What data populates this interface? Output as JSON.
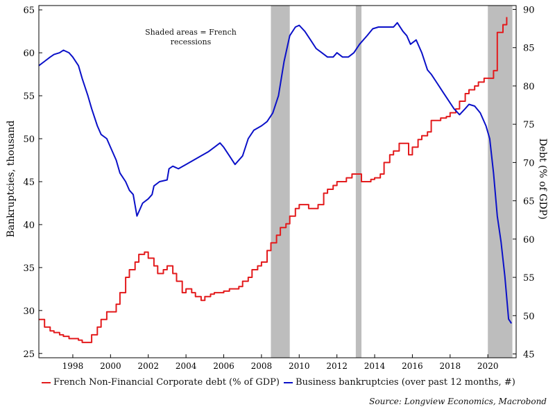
{
  "chart_data": {
    "type": "line",
    "annotation": "Shaded areas = French recessions",
    "source": "Source: Longview Economics, Macrobond",
    "x_ticks": [
      1998,
      2000,
      2002,
      2004,
      2006,
      2008,
      2010,
      2012,
      2014,
      2016,
      2018,
      2020
    ],
    "xlim": [
      1996.2,
      2021.5
    ],
    "left_axis": {
      "label": "Bankruptcies, thousand",
      "ylim": [
        24.5,
        65.5
      ],
      "ticks": [
        25,
        30,
        35,
        40,
        45,
        50,
        55,
        60,
        65
      ]
    },
    "right_axis": {
      "label": "Debt (% of GDP)",
      "ylim": [
        44.5,
        90.5
      ],
      "ticks": [
        45,
        50,
        55,
        60,
        65,
        70,
        75,
        80,
        85,
        90
      ]
    },
    "recessions": [
      [
        2008.5,
        2009.5
      ],
      [
        2013.0,
        2013.3
      ],
      [
        2020.0,
        2021.3
      ]
    ],
    "series": [
      {
        "name": "French Non-Financial Corporate debt (% of GDP)",
        "axis": "right",
        "color": "#e31a1c",
        "step": true,
        "x": [
          1996.2,
          1996.5,
          1996.8,
          1997.0,
          1997.3,
          1997.5,
          1997.8,
          1998.0,
          1998.3,
          1998.5,
          1998.8,
          1999.0,
          1999.3,
          1999.5,
          1999.8,
          2000.0,
          2000.3,
          2000.5,
          2000.8,
          2001.0,
          2001.3,
          2001.5,
          2001.8,
          2002.0,
          2002.3,
          2002.5,
          2002.8,
          2003.0,
          2003.3,
          2003.5,
          2003.8,
          2004.0,
          2004.3,
          2004.5,
          2004.8,
          2005.0,
          2005.3,
          2005.5,
          2005.8,
          2006.0,
          2006.3,
          2006.5,
          2006.8,
          2007.0,
          2007.3,
          2007.5,
          2007.8,
          2008.0,
          2008.3,
          2008.5,
          2008.8,
          2009.0,
          2009.3,
          2009.5,
          2009.8,
          2010.0,
          2010.3,
          2010.5,
          2010.8,
          2011.0,
          2011.3,
          2011.5,
          2011.8,
          2012.0,
          2012.3,
          2012.5,
          2012.8,
          2013.0,
          2013.3,
          2013.5,
          2013.8,
          2014.0,
          2014.3,
          2014.5,
          2014.8,
          2015.0,
          2015.3,
          2015.5,
          2015.8,
          2016.0,
          2016.3,
          2016.5,
          2016.8,
          2017.0,
          2017.3,
          2017.5,
          2017.8,
          2018.0,
          2018.3,
          2018.5,
          2018.8,
          2019.0,
          2019.3,
          2019.5,
          2019.8,
          2020.0,
          2020.3,
          2020.5,
          2020.8,
          2021.0
        ],
        "values": [
          49.5,
          48.5,
          48.0,
          47.8,
          47.5,
          47.3,
          47.0,
          47.0,
          46.8,
          46.5,
          46.5,
          47.5,
          48.5,
          49.5,
          50.5,
          50.5,
          51.5,
          53.0,
          55.0,
          56.0,
          57.0,
          58.0,
          58.3,
          57.5,
          56.5,
          55.5,
          56.0,
          56.5,
          55.5,
          54.5,
          53.0,
          53.5,
          53.0,
          52.5,
          52.0,
          52.5,
          52.8,
          53.0,
          53.0,
          53.2,
          53.5,
          53.5,
          53.8,
          54.5,
          55.0,
          56.0,
          56.5,
          57.0,
          58.5,
          59.5,
          60.5,
          61.5,
          62.0,
          63.0,
          64.0,
          64.5,
          64.5,
          64.0,
          64.0,
          64.5,
          66.0,
          66.5,
          67.0,
          67.5,
          67.5,
          68.0,
          68.5,
          68.5,
          67.5,
          67.5,
          67.8,
          68.0,
          68.5,
          70.0,
          71.0,
          71.5,
          72.5,
          72.5,
          71.0,
          72.0,
          73.0,
          73.5,
          74.0,
          75.5,
          75.5,
          75.8,
          76.0,
          76.5,
          77.0,
          78.0,
          79.0,
          79.5,
          80.0,
          80.5,
          81.0,
          81.0,
          82.0,
          87.0,
          88.0,
          89.0
        ]
      },
      {
        "name": "Business bankruptcies (over past 12 months, #)",
        "axis": "left",
        "color": "#0a10c8",
        "step": false,
        "x": [
          1996.2,
          1996.5,
          1996.8,
          1997.0,
          1997.3,
          1997.5,
          1997.8,
          1998.0,
          1998.3,
          1998.5,
          1998.8,
          1999.0,
          1999.3,
          1999.5,
          1999.8,
          2000.0,
          2000.3,
          2000.5,
          2000.8,
          2001.0,
          2001.2,
          2001.4,
          2001.7,
          2002.0,
          2002.2,
          2002.3,
          2002.6,
          2003.0,
          2003.1,
          2003.3,
          2003.6,
          2004.0,
          2004.4,
          2004.8,
          2005.2,
          2005.5,
          2005.8,
          2006.0,
          2006.3,
          2006.6,
          2007.0,
          2007.3,
          2007.6,
          2008.0,
          2008.3,
          2008.6,
          2008.9,
          2009.2,
          2009.5,
          2009.8,
          2010.0,
          2010.3,
          2010.6,
          2010.9,
          2011.2,
          2011.5,
          2011.8,
          2012.0,
          2012.3,
          2012.6,
          2012.9,
          2013.2,
          2013.6,
          2013.9,
          2014.2,
          2014.5,
          2014.8,
          2015.0,
          2015.2,
          2015.5,
          2015.7,
          2015.9,
          2016.2,
          2016.5,
          2016.8,
          2017.0,
          2017.3,
          2017.6,
          2017.9,
          2018.2,
          2018.5,
          2018.8,
          2019.0,
          2019.3,
          2019.6,
          2019.9,
          2020.1,
          2020.3,
          2020.5,
          2020.7,
          2020.9,
          2021.1,
          2021.25
        ],
        "values": [
          58.5,
          59.0,
          59.5,
          59.8,
          60.0,
          60.3,
          60.0,
          59.5,
          58.5,
          57.0,
          55.0,
          53.5,
          51.5,
          50.5,
          50.0,
          49.0,
          47.5,
          46.0,
          45.0,
          44.0,
          43.5,
          41.0,
          42.5,
          43.0,
          43.5,
          44.5,
          45.0,
          45.2,
          46.5,
          46.8,
          46.5,
          47.0,
          47.5,
          48.0,
          48.5,
          49.0,
          49.5,
          49.0,
          48.0,
          47.0,
          48.0,
          50.0,
          51.0,
          51.5,
          52.0,
          53.0,
          55.0,
          59.0,
          62.0,
          63.0,
          63.2,
          62.5,
          61.5,
          60.5,
          60.0,
          59.5,
          59.5,
          60.0,
          59.5,
          59.5,
          60.0,
          61.0,
          62.0,
          62.8,
          63.0,
          63.0,
          63.0,
          63.0,
          63.5,
          62.5,
          62.0,
          61.0,
          61.5,
          60.0,
          58.0,
          57.5,
          56.5,
          55.5,
          54.5,
          53.5,
          52.8,
          53.5,
          54.0,
          53.8,
          53.0,
          51.5,
          50.0,
          46.0,
          41.0,
          38.0,
          34.0,
          29.0,
          28.5
        ]
      }
    ]
  }
}
